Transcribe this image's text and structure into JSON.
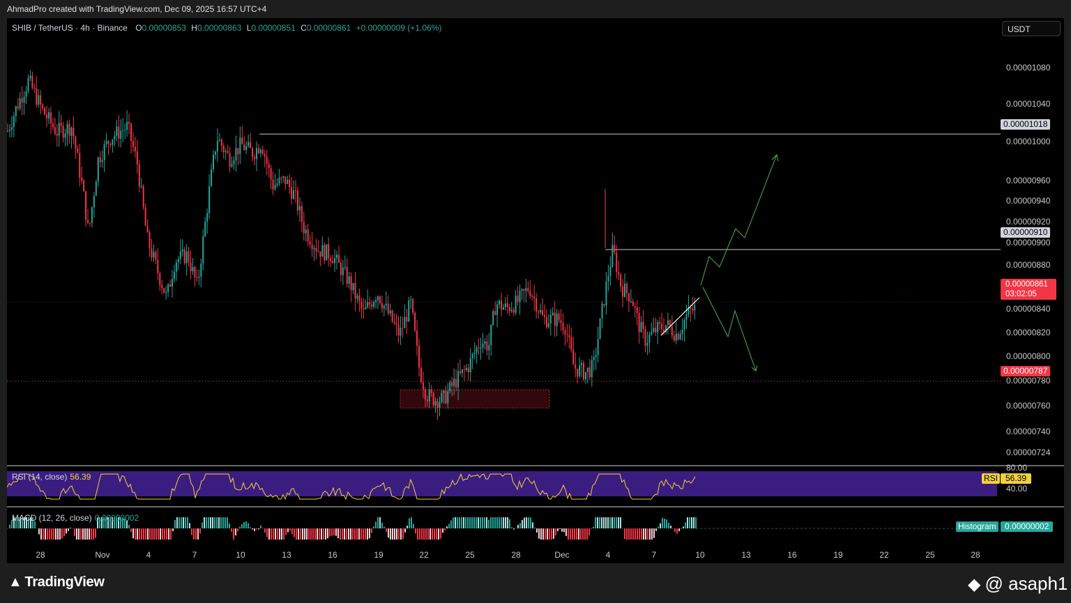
{
  "header": {
    "credit": "AhmadPro created with TradingView.com, Dec 09, 2025 16:57 UTC+4"
  },
  "legend": {
    "symbol": "SHIB / TetherUS · 4h · Binance",
    "o_key": "O",
    "o": "0.00000853",
    "h_key": "H",
    "h": "0.00000863",
    "l_key": "L",
    "l": "0.00000851",
    "c_key": "C",
    "c": "0.00000861",
    "change": "+0.00000009 (+1.06%)"
  },
  "currency": "USDT",
  "colors": {
    "up": "#26a69a",
    "down": "#f23645",
    "rsi_band": "#3b1d80",
    "rsi_line": "#f0d13c",
    "projection": "#4caf50",
    "zone": "#5a0f14"
  },
  "price_axis": {
    "labels": [
      "0.00001080",
      "0.00001040",
      "0.00001000",
      "0.00000960",
      "0.00000940",
      "0.00000920",
      "0.00000900",
      "0.00000880",
      "0.00000840",
      "0.00000820",
      "0.00000800",
      "0.00000780",
      "0.00000760",
      "0.00000740",
      "0.00000724"
    ],
    "tags": {
      "resistance_high": "0.00001018",
      "resistance_mid": "0.00000910",
      "support": "0.00000787"
    },
    "last_price": "0.00000861",
    "countdown": "03:02:05"
  },
  "time_axis": [
    "28",
    "Nov",
    "4",
    "7",
    "10",
    "13",
    "16",
    "19",
    "22",
    "25",
    "28",
    "Dec",
    "4",
    "7",
    "10",
    "13",
    "16",
    "19",
    "22",
    "25",
    "28"
  ],
  "rsi": {
    "label": "RSI (14, close)",
    "value": "56.39",
    "tag_name": "RSI",
    "upper": "80.00",
    "lower": "40.00"
  },
  "macd": {
    "label": "MACD (12, 26, close)",
    "value": "0.00000002",
    "tag_name": "Histogram",
    "tag_value": "0.00000002"
  },
  "footer": {
    "brand": "TradingView",
    "watermark": "@ asaph1"
  },
  "chart_data": {
    "type": "candlestick",
    "symbol": "SHIB / TetherUS",
    "timeframe": "4h",
    "ylim": [
      7.12e-06,
      1.095e-05
    ],
    "horizontal_levels": [
      1.018e-05,
      9.1e-06,
      7.87e-06
    ],
    "demand_zone": {
      "from": 7.62e-06,
      "to": 7.79e-06
    },
    "anchors": [
      {
        "x": 0,
        "p": 1.021e-05
      },
      {
        "x": 14,
        "p": 1.045e-05
      },
      {
        "x": 30,
        "p": 1.068e-05
      },
      {
        "x": 50,
        "p": 1.04e-05
      },
      {
        "x": 70,
        "p": 1.02e-05
      },
      {
        "x": 92,
        "p": 1.025e-05
      },
      {
        "x": 108,
        "p": 9.65e-06
      },
      {
        "x": 116,
        "p": 9.25e-06
      },
      {
        "x": 130,
        "p": 9.95e-06
      },
      {
        "x": 148,
        "p": 1.015e-05
      },
      {
        "x": 172,
        "p": 1.025e-05
      },
      {
        "x": 186,
        "p": 9.9e-06
      },
      {
        "x": 200,
        "p": 9.2e-06
      },
      {
        "x": 215,
        "p": 8.9e-06
      },
      {
        "x": 228,
        "p": 8.65e-06
      },
      {
        "x": 240,
        "p": 9e-06
      },
      {
        "x": 258,
        "p": 9.05e-06
      },
      {
        "x": 272,
        "p": 8.75e-06
      },
      {
        "x": 290,
        "p": 9.7e-06
      },
      {
        "x": 300,
        "p": 1.015e-05
      },
      {
        "x": 318,
        "p": 9.95e-06
      },
      {
        "x": 335,
        "p": 1.008e-05
      },
      {
        "x": 352,
        "p": 1e-05
      },
      {
        "x": 364,
        "p": 1.01e-05
      },
      {
        "x": 380,
        "p": 9.7e-06
      },
      {
        "x": 398,
        "p": 9.75e-06
      },
      {
        "x": 412,
        "p": 9.6e-06
      },
      {
        "x": 425,
        "p": 9.3e-06
      },
      {
        "x": 445,
        "p": 9.1e-06
      },
      {
        "x": 465,
        "p": 9.05e-06
      },
      {
        "x": 490,
        "p": 8.8e-06
      },
      {
        "x": 510,
        "p": 8.5e-06
      },
      {
        "x": 530,
        "p": 8.7e-06
      },
      {
        "x": 550,
        "p": 8.45e-06
      },
      {
        "x": 562,
        "p": 8.3e-06
      },
      {
        "x": 578,
        "p": 8.6e-06
      },
      {
        "x": 590,
        "p": 8e-06
      },
      {
        "x": 600,
        "p": 7.75e-06
      },
      {
        "x": 612,
        "p": 7.7e-06
      },
      {
        "x": 625,
        "p": 7.7e-06
      },
      {
        "x": 640,
        "p": 7.85e-06
      },
      {
        "x": 660,
        "p": 8e-06
      },
      {
        "x": 678,
        "p": 8.25e-06
      },
      {
        "x": 690,
        "p": 8.2e-06
      },
      {
        "x": 700,
        "p": 8.6e-06
      },
      {
        "x": 715,
        "p": 8.55e-06
      },
      {
        "x": 730,
        "p": 8.6e-06
      },
      {
        "x": 748,
        "p": 8.75e-06
      },
      {
        "x": 768,
        "p": 8.45e-06
      },
      {
        "x": 790,
        "p": 8.45e-06
      },
      {
        "x": 800,
        "p": 8.38e-06
      },
      {
        "x": 812,
        "p": 8e-06
      },
      {
        "x": 828,
        "p": 7.95e-06
      },
      {
        "x": 840,
        "p": 8e-06
      },
      {
        "x": 852,
        "p": 8.5e-06
      },
      {
        "x": 862,
        "p": 8.9e-06
      },
      {
        "x": 868,
        "p": 9.1e-06
      },
      {
        "x": 880,
        "p": 8.75e-06
      },
      {
        "x": 895,
        "p": 8.65e-06
      },
      {
        "x": 905,
        "p": 8.4e-06
      },
      {
        "x": 915,
        "p": 8.25e-06
      },
      {
        "x": 930,
        "p": 8.35e-06
      },
      {
        "x": 945,
        "p": 8.4e-06
      },
      {
        "x": 960,
        "p": 8.3e-06
      },
      {
        "x": 975,
        "p": 8.5e-06
      },
      {
        "x": 997,
        "p": 8.61e-06
      }
    ]
  }
}
